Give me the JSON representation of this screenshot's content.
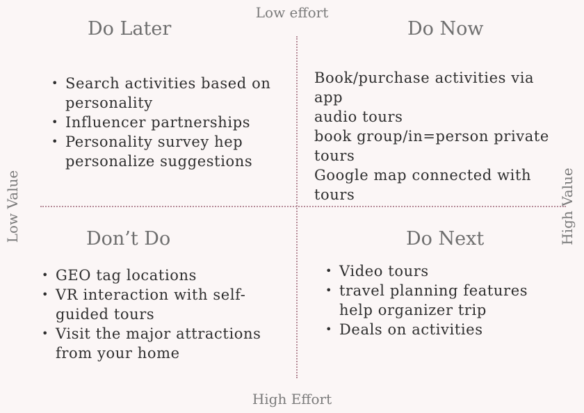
{
  "axes": {
    "top": "Low effort",
    "bottom": "High Effort",
    "left": "Low Value",
    "right": "High Value"
  },
  "quadrants": {
    "do_later": {
      "title": "Do Later",
      "items": [
        "Search activities based on personality",
        "Influencer partnerships",
        "Personality survey hep personalize suggestions"
      ]
    },
    "do_now": {
      "title": "Do Now",
      "items": [
        "Book/purchase activities via app",
        "audio tours",
        "book group/in=person private tours",
        "Google map connected with tours"
      ]
    },
    "dont_do": {
      "title": "Don’t Do",
      "items": [
        "GEO tag locations",
        "VR interaction with self-guided tours",
        "Visit the major attractions from your home"
      ]
    },
    "do_next": {
      "title": "Do Next",
      "items": [
        "Video tours",
        "travel planning features help organizer trip",
        "Deals on activities"
      ]
    }
  },
  "colors": {
    "background": "#fbf6f6",
    "divider": "#b58a97",
    "title": "#6e6e6e",
    "axis_label": "#7a7a7a"
  }
}
